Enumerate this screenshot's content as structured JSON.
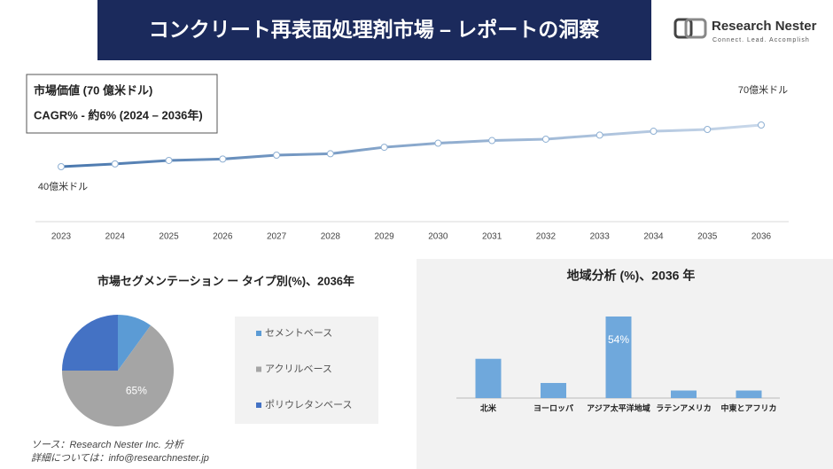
{
  "header": {
    "title": "コンクリート再表面処理剤市場 – レポートの洞察",
    "logo_name": "Research Nester",
    "logo_tagline": "Connect. Lead. Accomplish"
  },
  "chart_data": [
    {
      "type": "line",
      "annotations": [
        "市場価値 (70 億米ドル)",
        "CAGR% - 約6% (2024 – 2036年)"
      ],
      "categories": [
        "2023",
        "2024",
        "2025",
        "2026",
        "2027",
        "2028",
        "2029",
        "2030",
        "2031",
        "2032",
        "2033",
        "2034",
        "2035",
        "2036"
      ],
      "values": [
        40,
        42,
        44.5,
        45.5,
        48.3,
        49.3,
        54,
        56.9,
        58.8,
        59.8,
        62.7,
        65.5,
        66.8,
        70
      ],
      "value_labels": [
        "40億米ドル",
        null,
        null,
        null,
        null,
        null,
        null,
        null,
        null,
        null,
        null,
        null,
        null,
        "70億米ドル"
      ],
      "colors": [
        "#4a78ae",
        "#c9d8ea"
      ]
    },
    {
      "type": "pie",
      "title": "市場セグメンテーション ー タイプ別(%)、2036年",
      "categories": [
        "セメントベース",
        "アクリルベース",
        "ポリウレタンベース"
      ],
      "values": [
        10,
        65,
        25
      ],
      "value_labels": [
        null,
        "65%",
        null
      ],
      "colors": [
        "#5b9bd5",
        "#a5a5a5",
        "#4472c4"
      ]
    },
    {
      "type": "bar",
      "title": "地域分析 (%)、2036 年",
      "categories": [
        "北米",
        "ヨーロッパ",
        "アジア太平洋地域",
        "ラテンアメリカ",
        "中東とアフリカ"
      ],
      "values": [
        26,
        10,
        54,
        5,
        5
      ],
      "value_labels": [
        null,
        null,
        "54%",
        null,
        null
      ],
      "color": "#6fa8dc"
    }
  ],
  "footer": {
    "source": "ソース：Research Nester Inc. 分析",
    "contact": "詳細については：info@researchnester.jp"
  }
}
